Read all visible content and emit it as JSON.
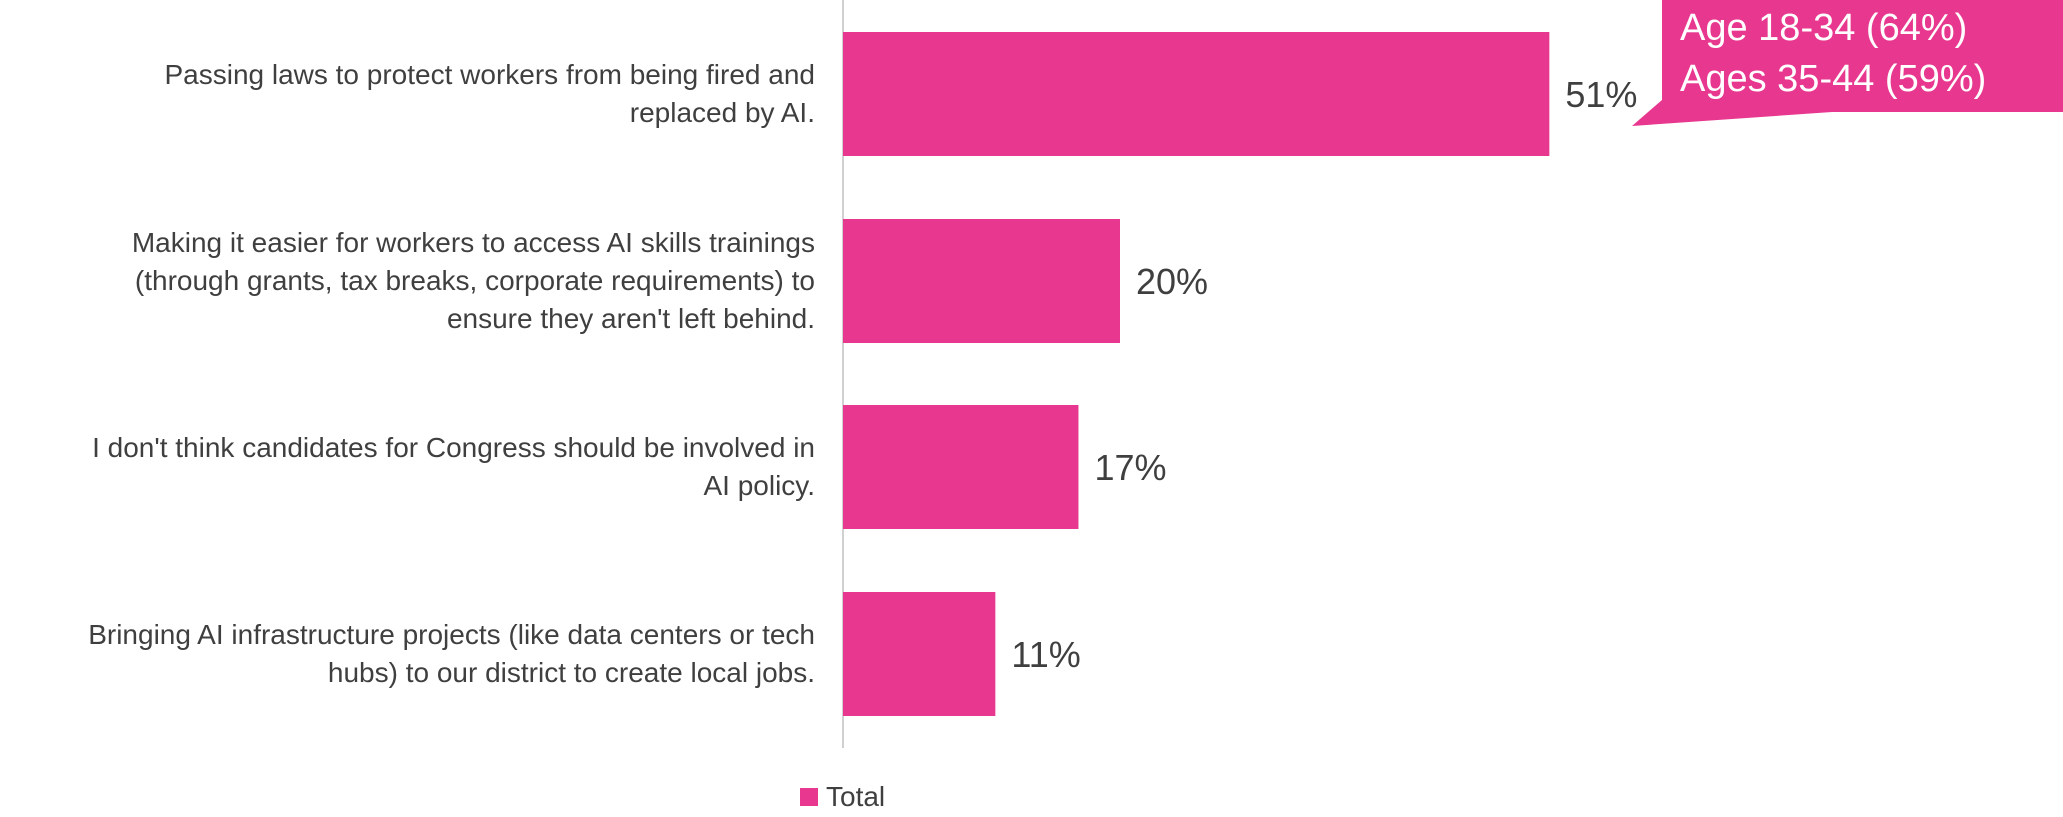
{
  "chart_data": {
    "type": "bar",
    "orientation": "horizontal",
    "categories": [
      "Passing laws to protect workers from being fired and replaced by AI.",
      "Making it easier for workers to access AI skills trainings (through grants, tax breaks, corporate requirements) to ensure they aren't left behind.",
      "I don't think candidates for Congress should be involved in AI policy.",
      "Bringing AI infrastructure projects (like data centers or tech hubs) to our district to create local jobs."
    ],
    "category_label_lines": [
      [
        "Passing laws to protect workers from being fired and",
        "replaced by AI."
      ],
      [
        "Making it easier for workers to access AI skills trainings",
        "(through grants, tax breaks, corporate requirements) to",
        "ensure they aren't left behind."
      ],
      [
        "I don't think candidates for Congress should be involved in",
        "AI policy."
      ],
      [
        "Bringing AI infrastructure projects (like data centers or tech",
        "hubs) to our district to create local jobs."
      ]
    ],
    "series": [
      {
        "name": "Total",
        "values": [
          51,
          20,
          17,
          11
        ]
      }
    ],
    "data_labels": [
      "51%",
      "20%",
      "17%",
      "11%"
    ],
    "xlim": [
      0,
      100
    ],
    "grid": false,
    "legend": {
      "position": "bottom",
      "entries": [
        "Total"
      ]
    },
    "callout": {
      "lines": [
        "Age 18-34 (64%)",
        "Ages 35-44 (59%)"
      ],
      "attached_to": 0
    },
    "colors": {
      "bar": "#E8378F",
      "axis": "#d0d0d0",
      "text": "#3f3f3f",
      "callout_text": "#ffffff"
    }
  }
}
